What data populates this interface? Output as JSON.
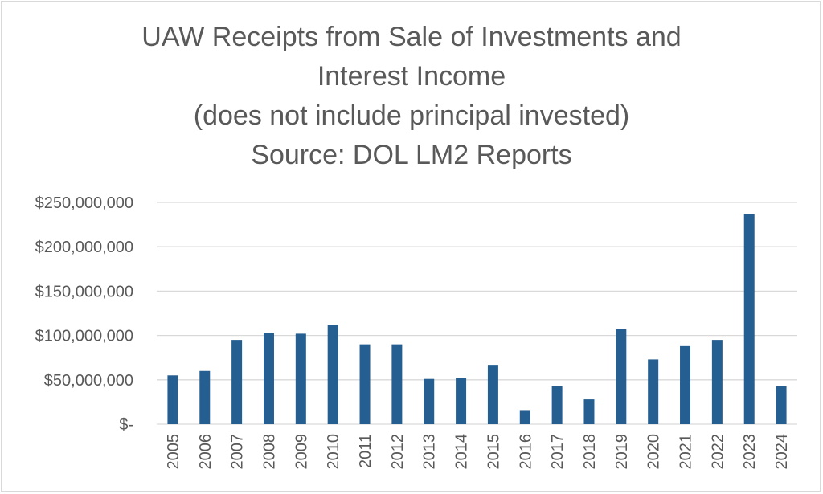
{
  "chart_data": {
    "type": "bar",
    "title_lines": [
      "UAW Receipts from Sale of Investments and",
      "Interest Income",
      "(does not include principal invested)",
      "Source: DOL LM2 Reports"
    ],
    "categories": [
      "2005",
      "2006",
      "2007",
      "2008",
      "2009",
      "2010",
      "2011",
      "2012",
      "2013",
      "2014",
      "2015",
      "2016",
      "2017",
      "2018",
      "2019",
      "2020",
      "2021",
      "2022",
      "2023",
      "2024"
    ],
    "values": [
      55000000,
      60000000,
      95000000,
      103000000,
      102000000,
      112000000,
      90000000,
      90000000,
      51000000,
      52000000,
      66000000,
      15000000,
      43000000,
      28000000,
      107000000,
      73000000,
      88000000,
      95000000,
      237000000,
      43000000
    ],
    "ylim": [
      0,
      250000000
    ],
    "yticks": [
      0,
      50000000,
      100000000,
      150000000,
      200000000,
      250000000
    ],
    "ytick_labels": [
      "$-",
      "$50,000,000",
      "$100,000,000",
      "$150,000,000",
      "$200,000,000",
      "$250,000,000"
    ],
    "grid": true,
    "bar_color": "#255e91",
    "grid_color": "#d9d9d9",
    "text_color": "#595959"
  }
}
